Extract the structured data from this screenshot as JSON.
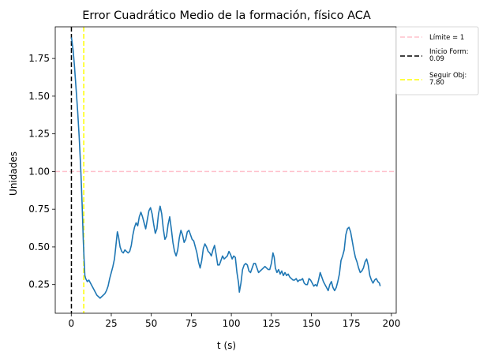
{
  "chart_data": {
    "type": "line",
    "title": "Error Cuadrático Medio de la formación, físico ACA",
    "xlabel": "t (s)",
    "ylabel": "Unidades",
    "xlim": [
      -10,
      203
    ],
    "ylim": [
      0.06,
      1.96
    ],
    "xticks": [
      0,
      25,
      50,
      75,
      100,
      125,
      150,
      175,
      200
    ],
    "yticks": [
      0.25,
      0.5,
      0.75,
      1.0,
      1.25,
      1.5,
      1.75
    ],
    "ytick_labels": [
      "0.25",
      "0.50",
      "0.75",
      "1.00",
      "1.25",
      "1.50",
      "1.75"
    ],
    "grid": false,
    "legend_position": "outside-top-right",
    "series": [
      {
        "color": "#1f77b4",
        "style": "solid",
        "points": [
          [
            0.09,
            1.89
          ],
          [
            0.5,
            1.86
          ],
          [
            1.2,
            1.8
          ],
          [
            2,
            1.7
          ],
          [
            3,
            1.55
          ],
          [
            4,
            1.4
          ],
          [
            5,
            1.22
          ],
          [
            6,
            1.0
          ],
          [
            6.8,
            0.78
          ],
          [
            7.5,
            0.55
          ],
          [
            8,
            0.42
          ],
          [
            8.5,
            0.31
          ],
          [
            9,
            0.29
          ],
          [
            10,
            0.27
          ],
          [
            11,
            0.28
          ],
          [
            12,
            0.26
          ],
          [
            13,
            0.24
          ],
          [
            14,
            0.22
          ],
          [
            15,
            0.2
          ],
          [
            16,
            0.18
          ],
          [
            17,
            0.17
          ],
          [
            18,
            0.16
          ],
          [
            19,
            0.17
          ],
          [
            20,
            0.18
          ],
          [
            21,
            0.19
          ],
          [
            22,
            0.21
          ],
          [
            23,
            0.24
          ],
          [
            24,
            0.29
          ],
          [
            25,
            0.33
          ],
          [
            26,
            0.37
          ],
          [
            27,
            0.42
          ],
          [
            28,
            0.52
          ],
          [
            28.8,
            0.6
          ],
          [
            29.5,
            0.57
          ],
          [
            30.5,
            0.5
          ],
          [
            31.5,
            0.47
          ],
          [
            32.5,
            0.46
          ],
          [
            33.5,
            0.48
          ],
          [
            34.5,
            0.47
          ],
          [
            35.5,
            0.46
          ],
          [
            36.5,
            0.47
          ],
          [
            37.5,
            0.51
          ],
          [
            38.5,
            0.58
          ],
          [
            39.5,
            0.63
          ],
          [
            40.5,
            0.66
          ],
          [
            41.5,
            0.64
          ],
          [
            42.5,
            0.7
          ],
          [
            43.5,
            0.73
          ],
          [
            44.5,
            0.7
          ],
          [
            45.5,
            0.66
          ],
          [
            46.5,
            0.62
          ],
          [
            47.5,
            0.68
          ],
          [
            48.5,
            0.74
          ],
          [
            49.5,
            0.76
          ],
          [
            50.5,
            0.72
          ],
          [
            51.5,
            0.65
          ],
          [
            52.5,
            0.59
          ],
          [
            53.5,
            0.62
          ],
          [
            54.5,
            0.72
          ],
          [
            55.5,
            0.77
          ],
          [
            56.5,
            0.72
          ],
          [
            57.5,
            0.62
          ],
          [
            58.5,
            0.55
          ],
          [
            59.5,
            0.57
          ],
          [
            60.5,
            0.65
          ],
          [
            61.5,
            0.7
          ],
          [
            62.5,
            0.62
          ],
          [
            63.5,
            0.53
          ],
          [
            64.5,
            0.47
          ],
          [
            65.5,
            0.44
          ],
          [
            66.5,
            0.48
          ],
          [
            67.5,
            0.56
          ],
          [
            68.5,
            0.61
          ],
          [
            69.5,
            0.58
          ],
          [
            70.5,
            0.53
          ],
          [
            71.5,
            0.55
          ],
          [
            72.5,
            0.6
          ],
          [
            73.5,
            0.61
          ],
          [
            74.5,
            0.58
          ],
          [
            75.5,
            0.55
          ],
          [
            76.5,
            0.54
          ],
          [
            77.5,
            0.5
          ],
          [
            78.5,
            0.46
          ],
          [
            79.5,
            0.4
          ],
          [
            80.5,
            0.36
          ],
          [
            81.5,
            0.41
          ],
          [
            82.5,
            0.49
          ],
          [
            83.5,
            0.52
          ],
          [
            84.5,
            0.5
          ],
          [
            85.5,
            0.47
          ],
          [
            86.5,
            0.46
          ],
          [
            87.5,
            0.44
          ],
          [
            88.5,
            0.48
          ],
          [
            89.5,
            0.51
          ],
          [
            90.5,
            0.45
          ],
          [
            91.5,
            0.38
          ],
          [
            92.5,
            0.38
          ],
          [
            93.5,
            0.41
          ],
          [
            94.5,
            0.44
          ],
          [
            95.5,
            0.42
          ],
          [
            96.5,
            0.43
          ],
          [
            97.5,
            0.44
          ],
          [
            98.5,
            0.47
          ],
          [
            99.5,
            0.45
          ],
          [
            100.5,
            0.42
          ],
          [
            101.5,
            0.44
          ],
          [
            102.5,
            0.43
          ],
          [
            103.5,
            0.33
          ],
          [
            104.5,
            0.26
          ],
          [
            105,
            0.2
          ],
          [
            106,
            0.26
          ],
          [
            107,
            0.35
          ],
          [
            108,
            0.38
          ],
          [
            109,
            0.39
          ],
          [
            110,
            0.38
          ],
          [
            111,
            0.34
          ],
          [
            112,
            0.33
          ],
          [
            113,
            0.36
          ],
          [
            114,
            0.39
          ],
          [
            115,
            0.39
          ],
          [
            116,
            0.36
          ],
          [
            117,
            0.33
          ],
          [
            118,
            0.34
          ],
          [
            119,
            0.35
          ],
          [
            120,
            0.36
          ],
          [
            121,
            0.37
          ],
          [
            122,
            0.36
          ],
          [
            123,
            0.35
          ],
          [
            124,
            0.35
          ],
          [
            125,
            0.39
          ],
          [
            126,
            0.46
          ],
          [
            126.8,
            0.43
          ],
          [
            127.5,
            0.36
          ],
          [
            128.5,
            0.33
          ],
          [
            129.5,
            0.35
          ],
          [
            130.5,
            0.32
          ],
          [
            131.5,
            0.34
          ],
          [
            132.5,
            0.31
          ],
          [
            133.5,
            0.33
          ],
          [
            134.5,
            0.31
          ],
          [
            135.5,
            0.32
          ],
          [
            136.5,
            0.3
          ],
          [
            137.5,
            0.29
          ],
          [
            138.5,
            0.28
          ],
          [
            139.5,
            0.28
          ],
          [
            140.5,
            0.29
          ],
          [
            141.5,
            0.27
          ],
          [
            142.5,
            0.28
          ],
          [
            143.5,
            0.28
          ],
          [
            144.5,
            0.29
          ],
          [
            145.5,
            0.26
          ],
          [
            146.5,
            0.25
          ],
          [
            147.5,
            0.25
          ],
          [
            148.5,
            0.29
          ],
          [
            149.5,
            0.28
          ],
          [
            150.5,
            0.26
          ],
          [
            151.5,
            0.24
          ],
          [
            152.5,
            0.25
          ],
          [
            153.5,
            0.24
          ],
          [
            154.5,
            0.28
          ],
          [
            155.5,
            0.33
          ],
          [
            156.5,
            0.3
          ],
          [
            157.5,
            0.27
          ],
          [
            158.5,
            0.25
          ],
          [
            159.5,
            0.23
          ],
          [
            160.5,
            0.21
          ],
          [
            161.5,
            0.25
          ],
          [
            162.5,
            0.27
          ],
          [
            163.5,
            0.23
          ],
          [
            164.5,
            0.21
          ],
          [
            165.5,
            0.23
          ],
          [
            166.5,
            0.27
          ],
          [
            167.5,
            0.32
          ],
          [
            168.5,
            0.41
          ],
          [
            169.5,
            0.44
          ],
          [
            170.5,
            0.48
          ],
          [
            171.5,
            0.58
          ],
          [
            172.5,
            0.62
          ],
          [
            173.5,
            0.63
          ],
          [
            174.5,
            0.6
          ],
          [
            175.5,
            0.54
          ],
          [
            176.5,
            0.48
          ],
          [
            177.5,
            0.43
          ],
          [
            178.5,
            0.4
          ],
          [
            179.5,
            0.36
          ],
          [
            180.5,
            0.33
          ],
          [
            181.5,
            0.34
          ],
          [
            182.5,
            0.36
          ],
          [
            183.5,
            0.4
          ],
          [
            184.5,
            0.42
          ],
          [
            185.5,
            0.38
          ],
          [
            186.5,
            0.31
          ],
          [
            187.5,
            0.28
          ],
          [
            188.5,
            0.26
          ],
          [
            189.5,
            0.28
          ],
          [
            190.5,
            0.29
          ],
          [
            191.5,
            0.27
          ],
          [
            192.5,
            0.26
          ],
          [
            193,
            0.24
          ]
        ]
      }
    ],
    "hlines": [
      {
        "name": "Límite = 1",
        "y": 1.0,
        "color": "#ffc0cb",
        "style": "dashed"
      }
    ],
    "vlines": [
      {
        "name": "Inicio Form:\n0.09",
        "x": 0.09,
        "color": "#000000",
        "style": "dashed"
      },
      {
        "name": "Seguir Obj:\n7.80",
        "x": 7.8,
        "color": "#ffff00",
        "style": "dashed"
      }
    ],
    "legend": [
      {
        "label_lines": [
          "Límite = 1"
        ],
        "color": "#ffc0cb",
        "style": "dashed"
      },
      {
        "label_lines": [
          "Inicio Form:",
          "0.09"
        ],
        "color": "#000000",
        "style": "dashed"
      },
      {
        "label_lines": [
          "Seguir Obj:",
          "7.80"
        ],
        "color": "#ffff00",
        "style": "dashed"
      }
    ]
  }
}
